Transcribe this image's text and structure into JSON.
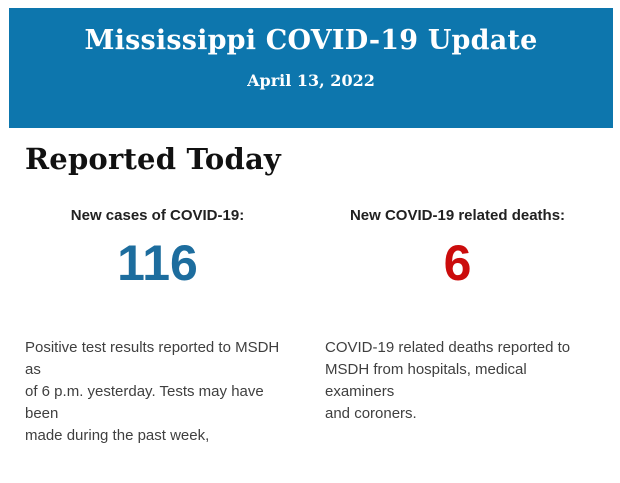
{
  "header": {
    "title": "Mississippi COVID-19 Update",
    "date": "April 13, 2022"
  },
  "main": {
    "section_title": "Reported Today",
    "stats": [
      {
        "label": "New cases of COVID-19:",
        "value": "116",
        "description": "Positive test results reported to MSDH as\nof 6 p.m. yesterday. Tests may have been\nmade during the past week,"
      },
      {
        "label": "New COVID-19 related deaths:",
        "value": "6",
        "description": "COVID-19 related deaths reported to\nMSDH from hospitals, medical examiners\nand coroners."
      }
    ]
  },
  "colors": {
    "header_bg": "#0d76ad",
    "cases_color": "#1d6d9e",
    "deaths_color": "#cb0c0c"
  }
}
